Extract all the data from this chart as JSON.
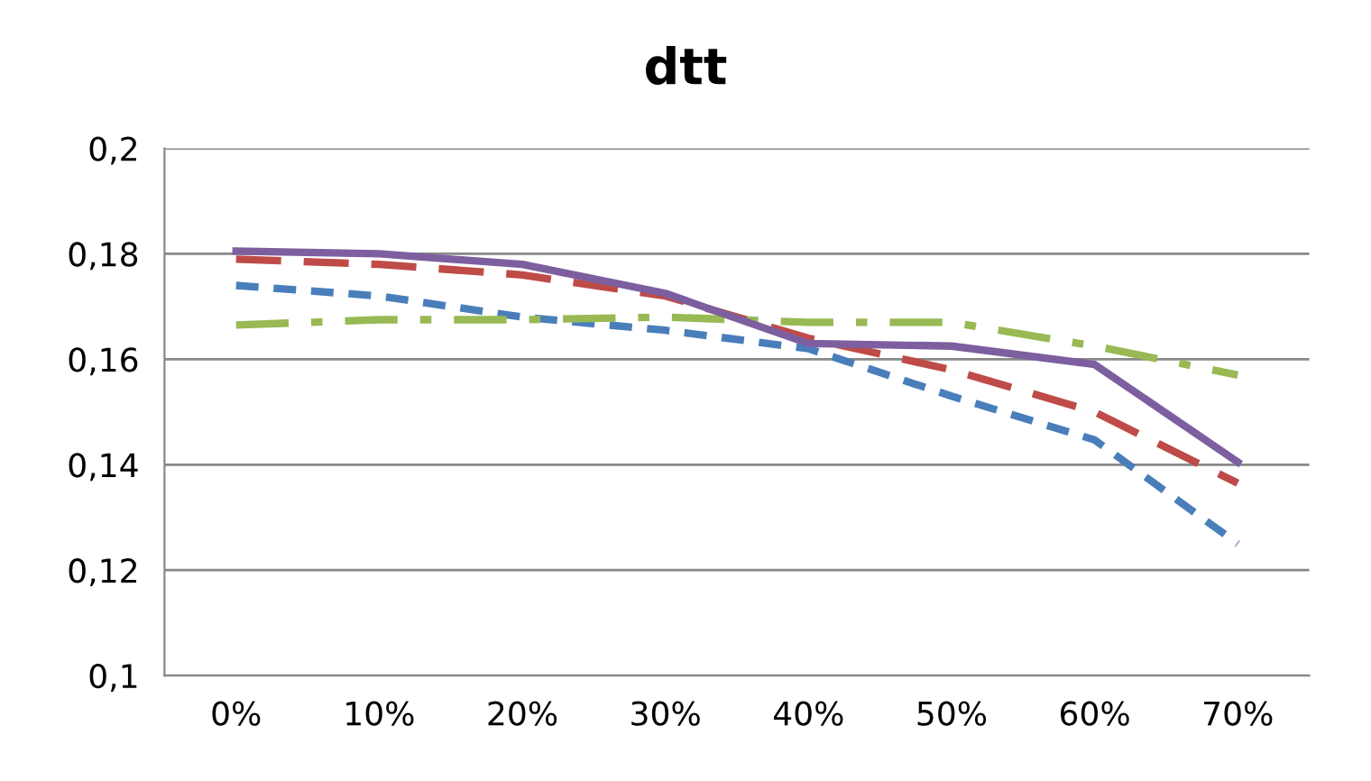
{
  "chart_data": {
    "type": "line",
    "title": "dtt",
    "categories": [
      "0%",
      "10%",
      "20%",
      "30%",
      "40%",
      "50%",
      "60%",
      "70%"
    ],
    "series": [
      {
        "color": "#4a7ebb",
        "line_style": "dotted",
        "values": [
          0.174,
          0.172,
          0.168,
          0.1655,
          0.162,
          0.153,
          0.1447,
          0.125
        ]
      },
      {
        "color": "#be4b48",
        "line_style": "dashed",
        "values": [
          0.179,
          0.178,
          0.176,
          0.172,
          0.164,
          0.158,
          0.15,
          0.1365
        ]
      },
      {
        "color": "#98b954",
        "line_style": "dashdot",
        "values": [
          0.1665,
          0.1675,
          0.1675,
          0.168,
          0.167,
          0.167,
          0.1625,
          0.157
        ]
      },
      {
        "color": "#7d5fa0",
        "line_style": "solid",
        "values": [
          0.1805,
          0.18,
          0.178,
          0.1725,
          0.163,
          0.1625,
          0.159,
          0.1405
        ]
      }
    ],
    "ylim": [
      0.1,
      0.2
    ],
    "yticks": [
      {
        "value": 0.1,
        "label": "0,1"
      },
      {
        "value": 0.12,
        "label": "0,12"
      },
      {
        "value": 0.14,
        "label": "0,14"
      },
      {
        "value": 0.16,
        "label": "0,16"
      },
      {
        "value": 0.18,
        "label": "0,18"
      },
      {
        "value": 0.2,
        "label": "0,2"
      }
    ],
    "grid": "y",
    "marker": "none"
  }
}
